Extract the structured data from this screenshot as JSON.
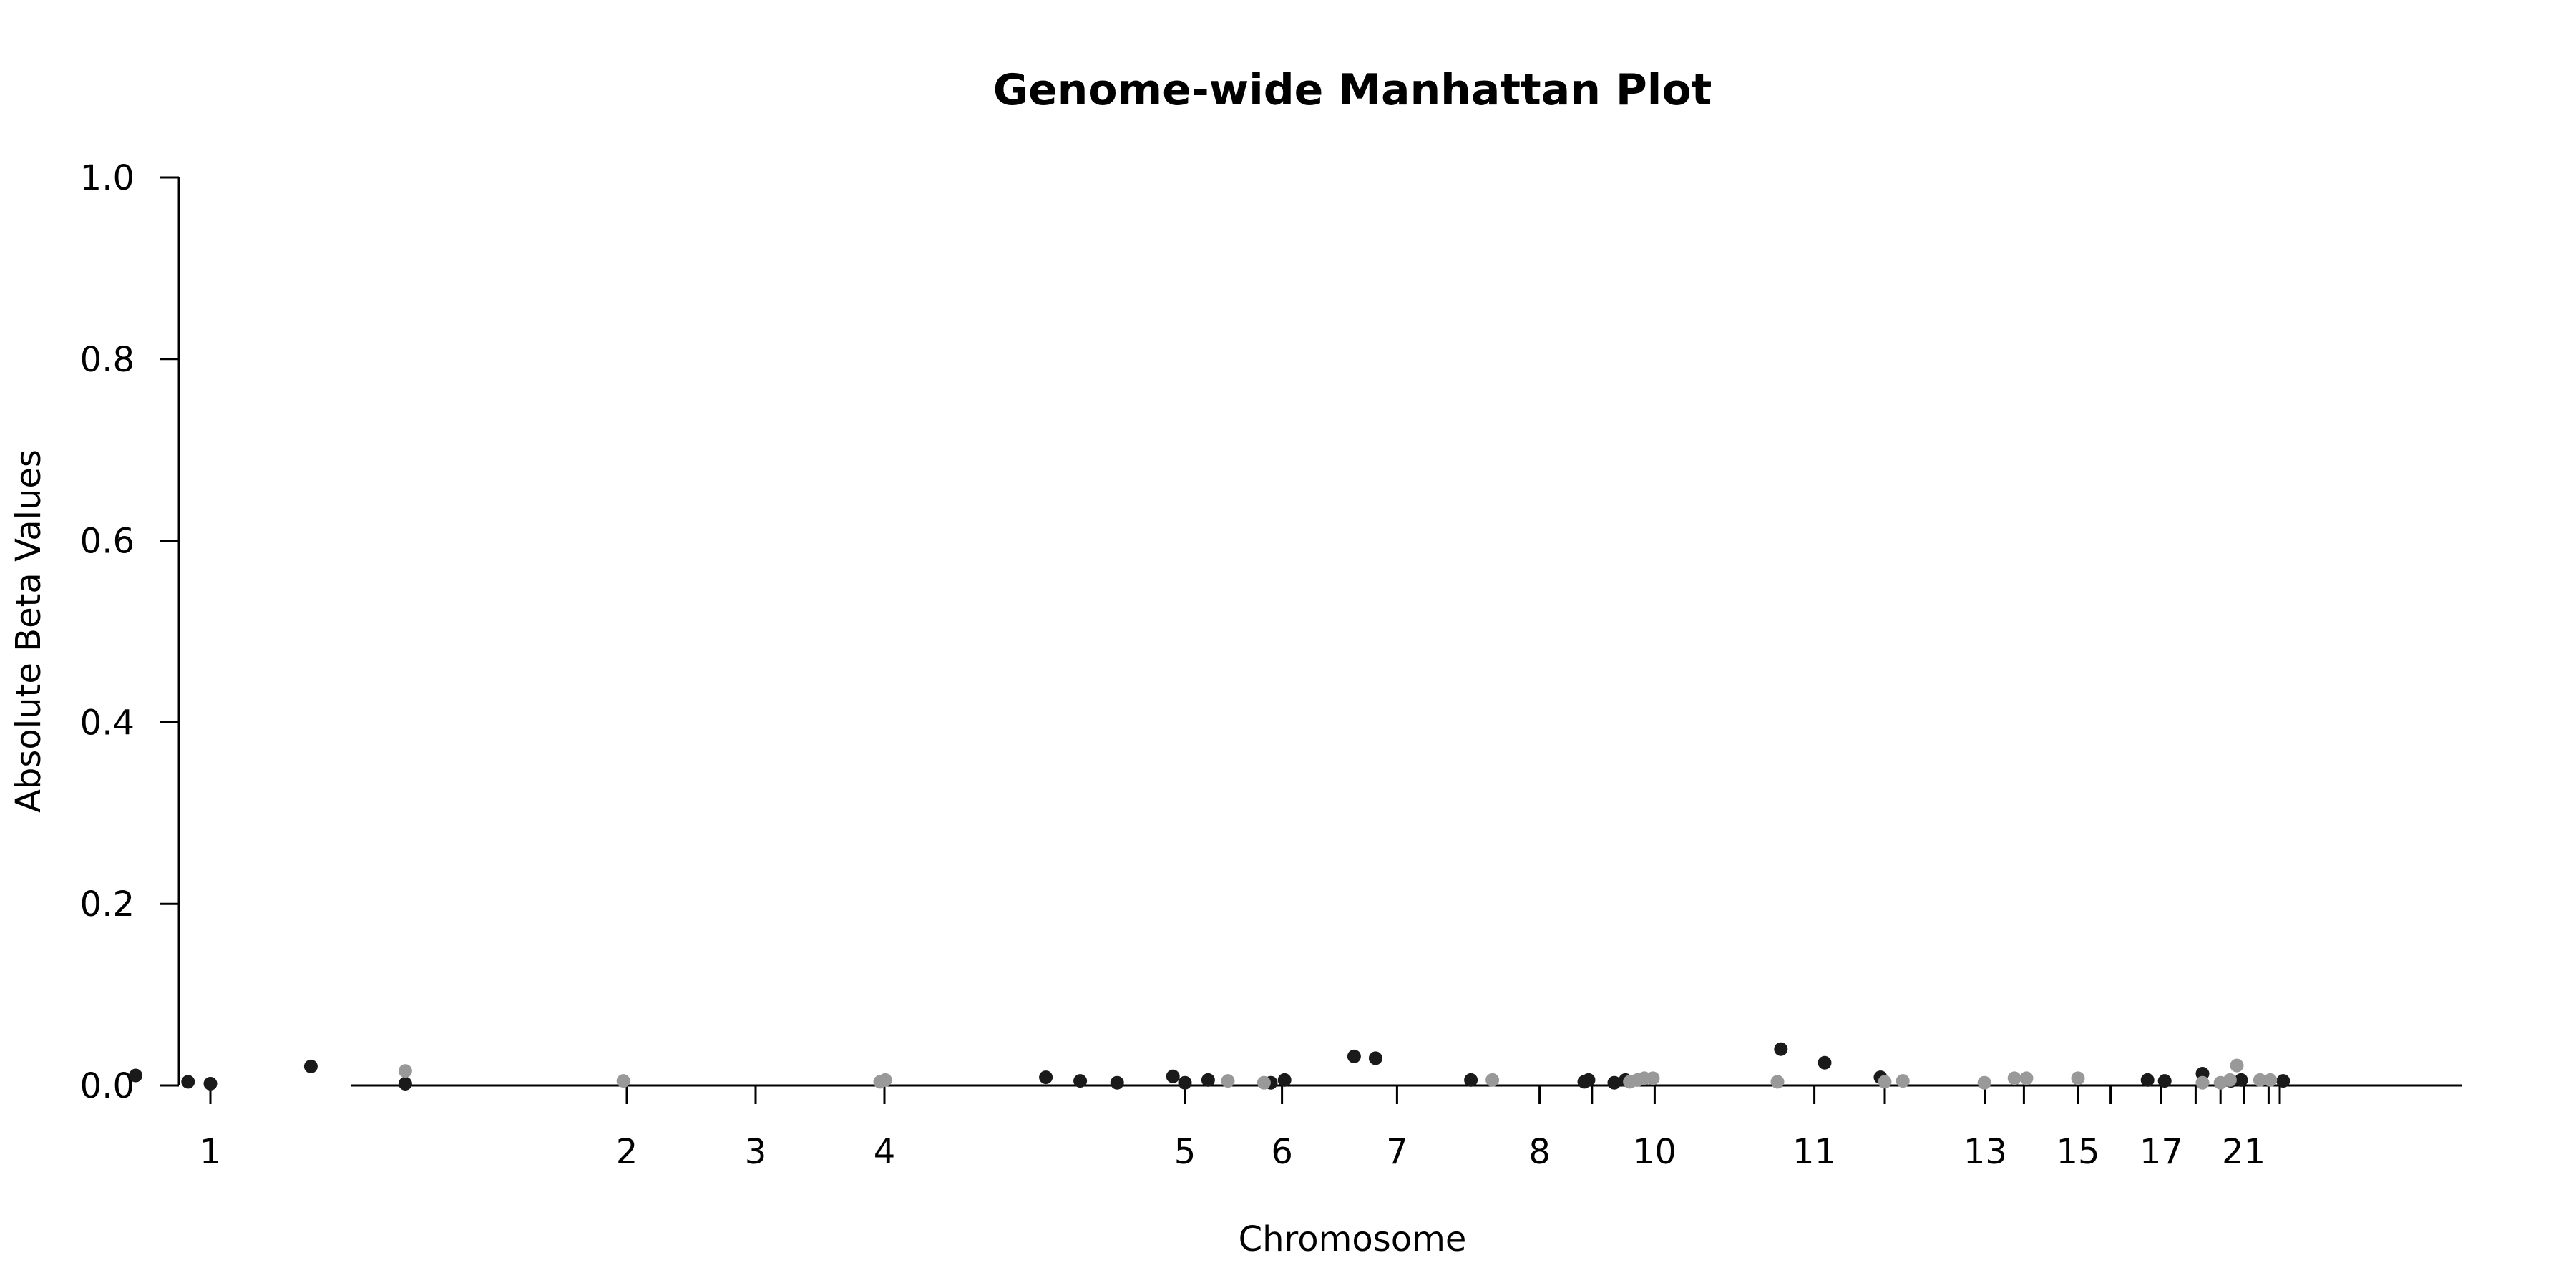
{
  "chart_data": {
    "type": "scatter",
    "title": "Genome-wide Manhattan Plot",
    "xlabel": "Chromosome",
    "ylabel": "Absolute Beta Values",
    "ylim": [
      0,
      1
    ],
    "yticks": [
      {
        "value": 0.0,
        "label": "0.0"
      },
      {
        "value": 0.2,
        "label": "0.2"
      },
      {
        "value": 0.4,
        "label": "0.4"
      },
      {
        "value": 0.6,
        "label": "0.6"
      },
      {
        "value": 0.8,
        "label": "0.8"
      },
      {
        "value": 1.0,
        "label": "1.0"
      }
    ],
    "xlim": [
      0,
      3000
    ],
    "xticks": [
      {
        "value": 245,
        "label": "1"
      },
      {
        "value": 730,
        "label": "2"
      },
      {
        "value": 880,
        "label": "3"
      },
      {
        "value": 1030,
        "label": "4"
      },
      {
        "value": 1380,
        "label": "5"
      },
      {
        "value": 1493,
        "label": "6"
      },
      {
        "value": 1627,
        "label": "7"
      },
      {
        "value": 1793,
        "label": "8"
      },
      {
        "value": 1854,
        "label": ""
      },
      {
        "value": 1927,
        "label": "10"
      },
      {
        "value": 2113,
        "label": "11"
      },
      {
        "value": 2195,
        "label": ""
      },
      {
        "value": 2312,
        "label": "13"
      },
      {
        "value": 2357,
        "label": ""
      },
      {
        "value": 2420,
        "label": "15"
      },
      {
        "value": 2458,
        "label": ""
      },
      {
        "value": 2517,
        "label": "17"
      },
      {
        "value": 2557,
        "label": ""
      },
      {
        "value": 2586,
        "label": ""
      },
      {
        "value": 2613,
        "label": "21"
      },
      {
        "value": 2642,
        "label": ""
      },
      {
        "value": 2655,
        "label": ""
      }
    ],
    "colors": {
      "odd": "#1a1a1a",
      "even": "#999999"
    },
    "series": [
      {
        "color": "odd",
        "x": [
          158,
          219,
          245,
          362,
          472,
          1218,
          1258,
          1301,
          1366,
          1380,
          1407,
          1480,
          1496,
          1577,
          1602,
          1713,
          1845,
          1850,
          1880,
          1893,
          2074,
          2125,
          2190,
          2501,
          2521,
          2565,
          2598,
          2610,
          2659
        ],
        "y": [
          0.011,
          0.004,
          0.002,
          0.021,
          0.002,
          0.009,
          0.005,
          0.003,
          0.01,
          0.003,
          0.006,
          0.003,
          0.006,
          0.032,
          0.03,
          0.006,
          0.004,
          0.006,
          0.003,
          0.006,
          0.04,
          0.025,
          0.009,
          0.006,
          0.005,
          0.013,
          0.005,
          0.006,
          0.005
        ]
      },
      {
        "color": "even",
        "x": [
          472,
          726,
          1025,
          1031,
          1430,
          1472,
          1738,
          1898,
          1907,
          1915,
          1925,
          2070,
          2195,
          2216,
          2311,
          2346,
          2360,
          2420,
          2565,
          2586,
          2597,
          2605,
          2632,
          2644
        ],
        "y": [
          0.016,
          0.005,
          0.004,
          0.006,
          0.005,
          0.003,
          0.006,
          0.004,
          0.006,
          0.008,
          0.008,
          0.004,
          0.004,
          0.005,
          0.003,
          0.008,
          0.008,
          0.008,
          0.003,
          0.003,
          0.006,
          0.022,
          0.006,
          0.006
        ]
      }
    ]
  }
}
